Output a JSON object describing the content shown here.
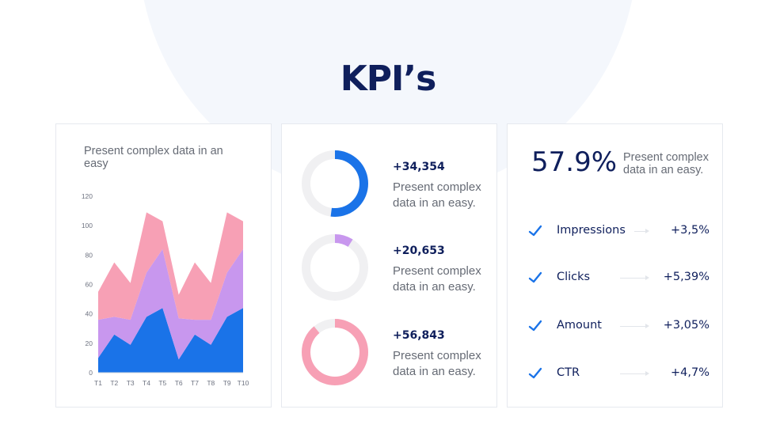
{
  "title": "KPI’s",
  "colors": {
    "navy": "#0f1f5c",
    "blue": "#1a73e8",
    "lilac": "#c897ee",
    "pink": "#f7a0b5",
    "ring_bg": "#f0f0f2"
  },
  "chart_panel": {
    "caption": "Present complex data in an easy"
  },
  "chart_data": {
    "type": "area",
    "stacked": true,
    "categories": [
      "T1",
      "T2",
      "T3",
      "T4",
      "T5",
      "T6",
      "T7",
      "T8",
      "T9",
      "T10"
    ],
    "y_ticks": [
      "0",
      "20",
      "40",
      "60",
      "80",
      "100",
      "120"
    ],
    "ylim": [
      0,
      120
    ],
    "series": [
      {
        "values": [
          10,
          26,
          19,
          38,
          44,
          9,
          26,
          19,
          38,
          44
        ],
        "color": "#1a73e8"
      },
      {
        "values": [
          26,
          12,
          17,
          30,
          40,
          28,
          10,
          17,
          30,
          40
        ],
        "color": "#c897ee"
      },
      {
        "values": [
          19,
          37,
          25,
          41,
          19,
          16,
          39,
          25,
          41,
          19
        ],
        "color": "#f7a0b5"
      }
    ]
  },
  "donuts": [
    {
      "value": "+34,354",
      "text": "Present complex data in an easy.",
      "fraction": 0.52,
      "color": "#1a73e8"
    },
    {
      "value": "+20,653",
      "text": "Present complex data in an easy.",
      "fraction": 0.09,
      "color": "#c897ee"
    },
    {
      "value": "+56,843",
      "text": "Present complex data in an easy.",
      "fraction": 0.89,
      "color": "#f7a0b5"
    }
  ],
  "kpi_panel": {
    "percent": "57.9%",
    "caption": "Present complex data in an easy.",
    "rows": [
      {
        "label": "Impressions",
        "value": "+3,5%",
        "icon": "check-icon"
      },
      {
        "label": "Clicks",
        "value": "+5,39%",
        "icon": "check-icon"
      },
      {
        "label": "Amount",
        "value": "+3,05%",
        "icon": "check-icon"
      },
      {
        "label": "CTR",
        "value": "+4,7%",
        "icon": "check-icon"
      }
    ]
  }
}
